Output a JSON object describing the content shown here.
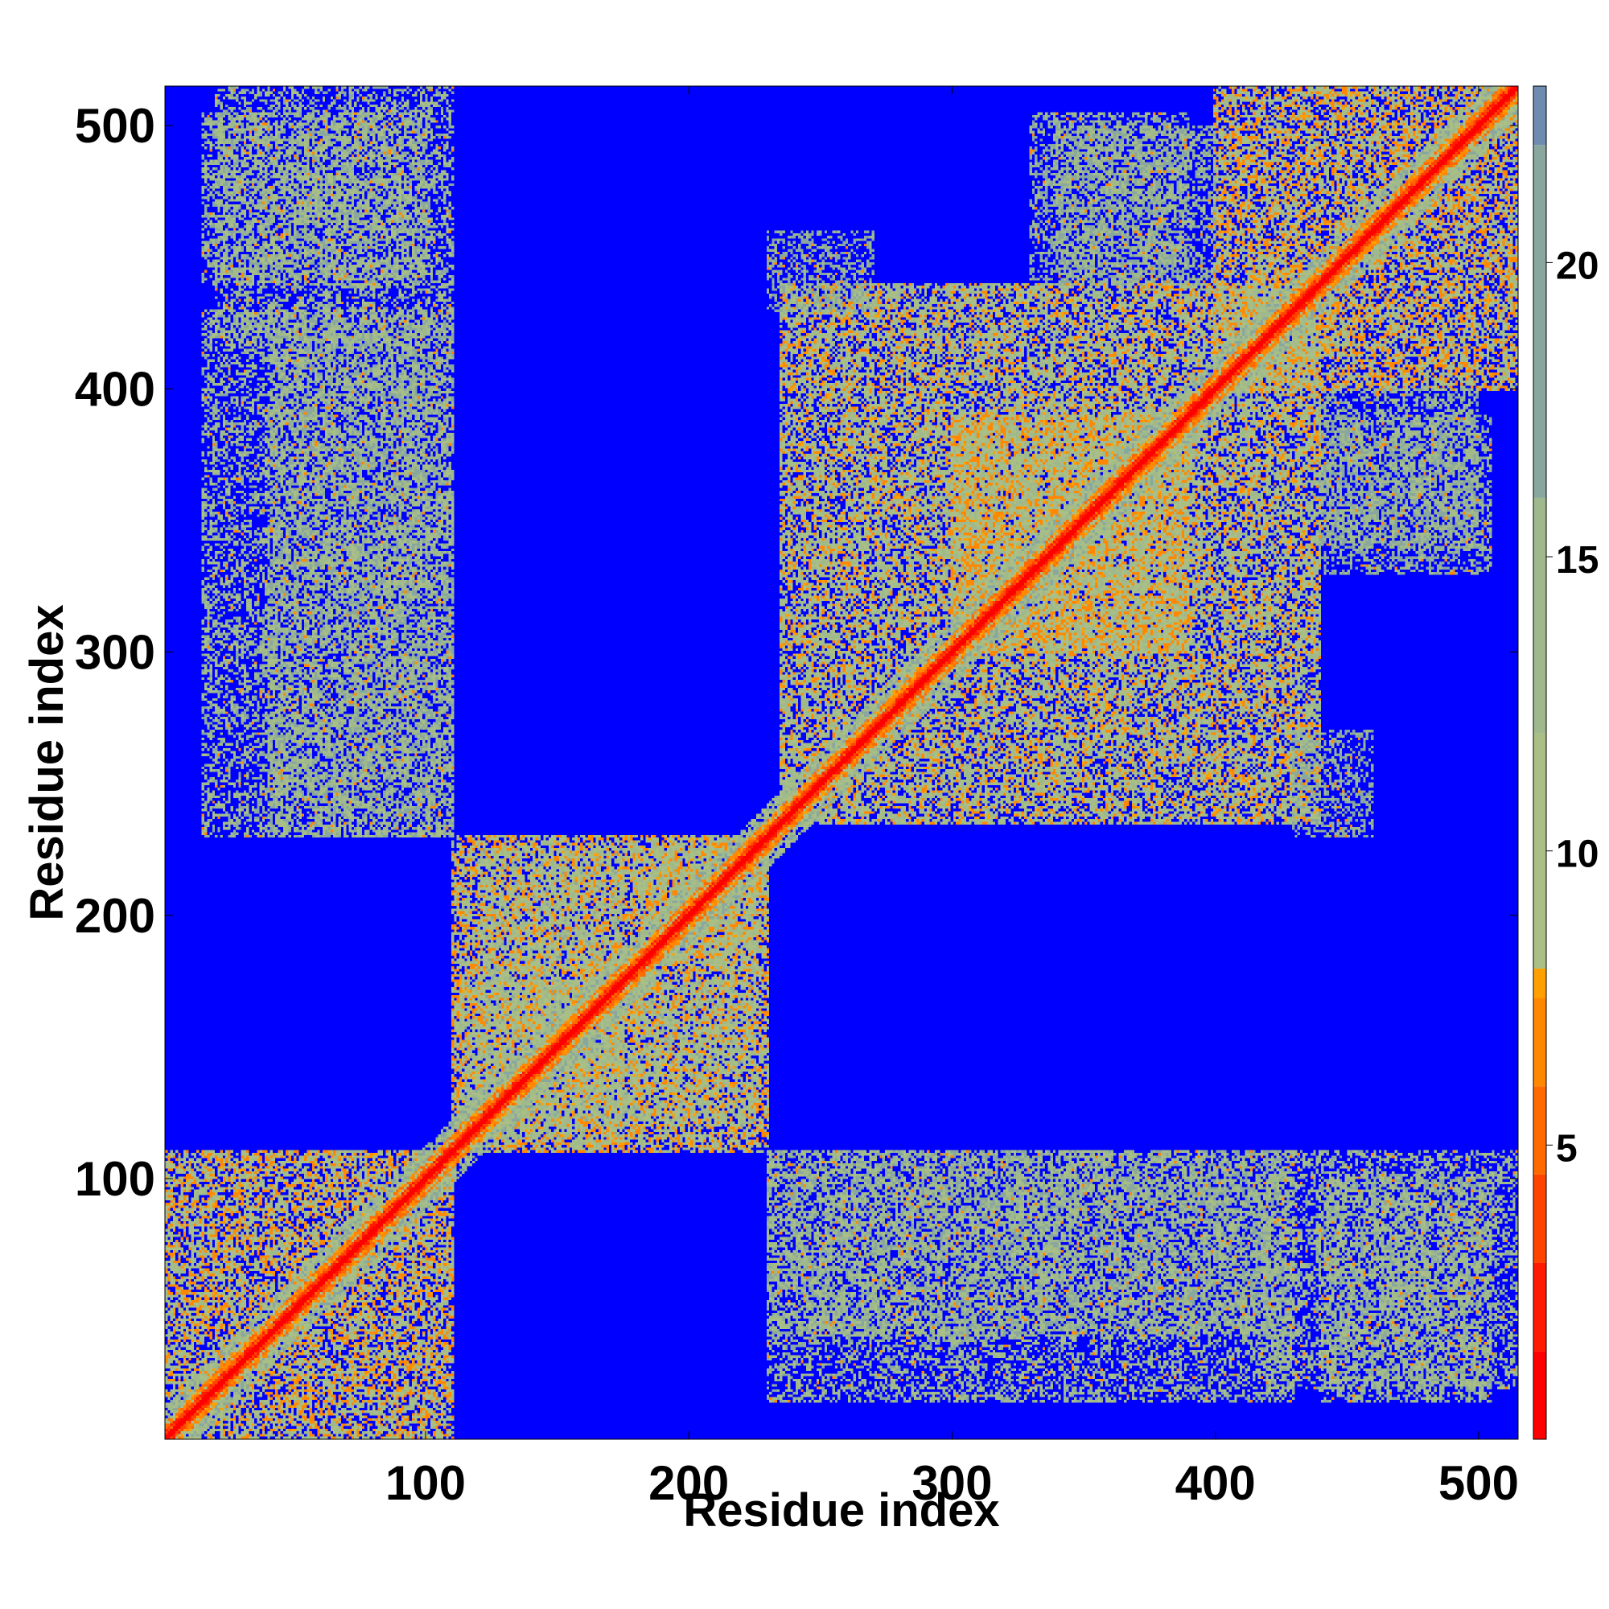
{
  "chart_data": {
    "type": "heatmap",
    "title": "",
    "xlabel": "Residue index",
    "ylabel": "Residue index",
    "xlim": [
      1,
      515
    ],
    "ylim": [
      1,
      515
    ],
    "n_residues": 515,
    "x_ticks": [
      100,
      200,
      300,
      400,
      500
    ],
    "y_ticks": [
      100,
      200,
      300,
      400,
      500
    ],
    "colorbar": {
      "ticks": [
        5,
        10,
        15,
        20
      ],
      "range": [
        0,
        23
      ],
      "stops": [
        {
          "value": 0,
          "color": "#ff0000"
        },
        {
          "value": 1.5,
          "color": "#ff1a00"
        },
        {
          "value": 3,
          "color": "#ff4400"
        },
        {
          "value": 4.5,
          "color": "#ff6a00"
        },
        {
          "value": 6,
          "color": "#ff8800"
        },
        {
          "value": 7.5,
          "color": "#ffa000"
        },
        {
          "value": 8,
          "color": "#a9bf85"
        },
        {
          "value": 12,
          "color": "#9fb98c"
        },
        {
          "value": 16,
          "color": "#89a79e"
        },
        {
          "value": 22,
          "color": "#6e8cb0"
        },
        {
          "value": 23,
          "color": "#0000ff"
        }
      ]
    },
    "background_color": "#0000ff",
    "description": "Residue-residue distance map (distance values, diagonal = 0)",
    "diagonal_band_width": 4,
    "contact_blocks": [
      {
        "x": [
          1,
          110
        ],
        "y": [
          1,
          110
        ],
        "level": 10
      },
      {
        "x": [
          110,
          230
        ],
        "y": [
          110,
          230
        ],
        "level": 10
      },
      {
        "x": [
          120,
          175
        ],
        "y": [
          115,
          225
        ],
        "level": 12
      },
      {
        "x": [
          180,
          230
        ],
        "y": [
          185,
          225
        ],
        "level": 11
      },
      {
        "x": [
          235,
          440
        ],
        "y": [
          235,
          440
        ],
        "level": 11
      },
      {
        "x": [
          300,
          390
        ],
        "y": [
          300,
          390
        ],
        "level": 10
      },
      {
        "x": [
          400,
          515
        ],
        "y": [
          400,
          515
        ],
        "level": 10
      },
      {
        "x": [
          15,
          110
        ],
        "y": [
          230,
          430
        ],
        "level": 14
      },
      {
        "x": [
          15,
          100
        ],
        "y": [
          440,
          505
        ],
        "level": 14
      },
      {
        "x": [
          230,
          420
        ],
        "y": [
          40,
          110
        ],
        "level": 15
      },
      {
        "x": [
          420,
          515
        ],
        "y": [
          20,
          110
        ],
        "level": 14
      },
      {
        "x": [
          330,
          390
        ],
        "y": [
          440,
          505
        ],
        "level": 16
      },
      {
        "x": [
          440,
          500
        ],
        "y": [
          340,
          400
        ],
        "level": 15
      },
      {
        "x": [
          430,
          460
        ],
        "y": [
          230,
          270
        ],
        "level": 17
      }
    ]
  }
}
